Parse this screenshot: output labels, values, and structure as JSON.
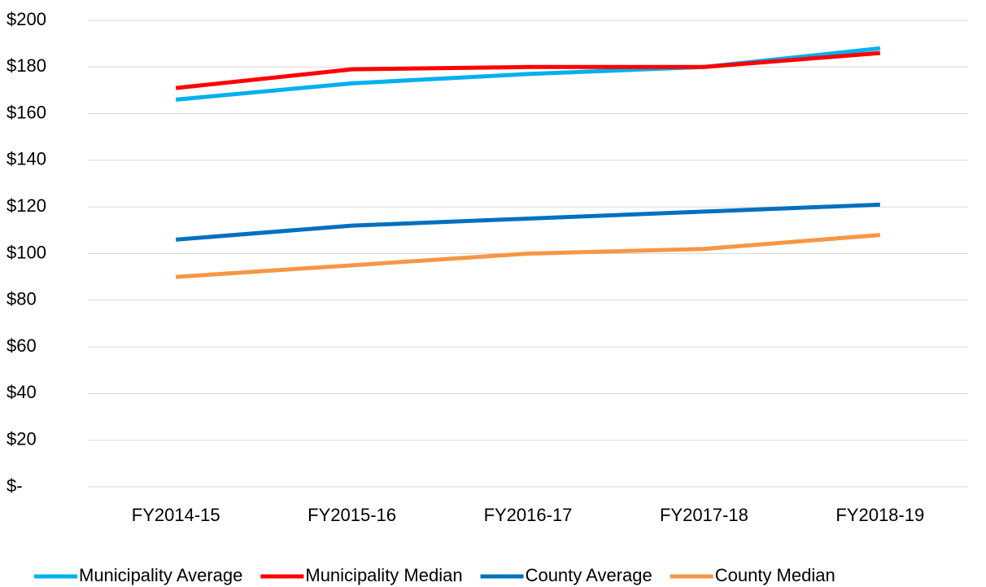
{
  "chart_data": {
    "type": "line",
    "categories": [
      "FY2014-15",
      "FY2015-16",
      "FY2016-17",
      "FY2017-18",
      "FY2018-19"
    ],
    "series": [
      {
        "name": "Municipality Average",
        "color": "#00b0f0",
        "values": [
          166,
          173,
          177,
          180,
          188
        ]
      },
      {
        "name": "Municipality Median",
        "color": "#ff0000",
        "values": [
          171,
          179,
          180,
          180,
          186
        ]
      },
      {
        "name": "County Average",
        "color": "#0070c0",
        "values": [
          106,
          112,
          115,
          118,
          121
        ]
      },
      {
        "name": "County Median",
        "color": "#f79646",
        "values": [
          90,
          95,
          100,
          102,
          108
        ]
      }
    ],
    "ylim": [
      0,
      200
    ],
    "yticks": [
      {
        "value": 0,
        "label": "$-"
      },
      {
        "value": 20,
        "label": "$20"
      },
      {
        "value": 40,
        "label": "$40"
      },
      {
        "value": 60,
        "label": "$60"
      },
      {
        "value": 80,
        "label": "$80"
      },
      {
        "value": 100,
        "label": "$100"
      },
      {
        "value": 120,
        "label": "$120"
      },
      {
        "value": 140,
        "label": "$140"
      },
      {
        "value": 160,
        "label": "$160"
      },
      {
        "value": 180,
        "label": "$180"
      },
      {
        "value": 200,
        "label": "$200"
      }
    ],
    "grid": true,
    "legend": "bottom"
  }
}
